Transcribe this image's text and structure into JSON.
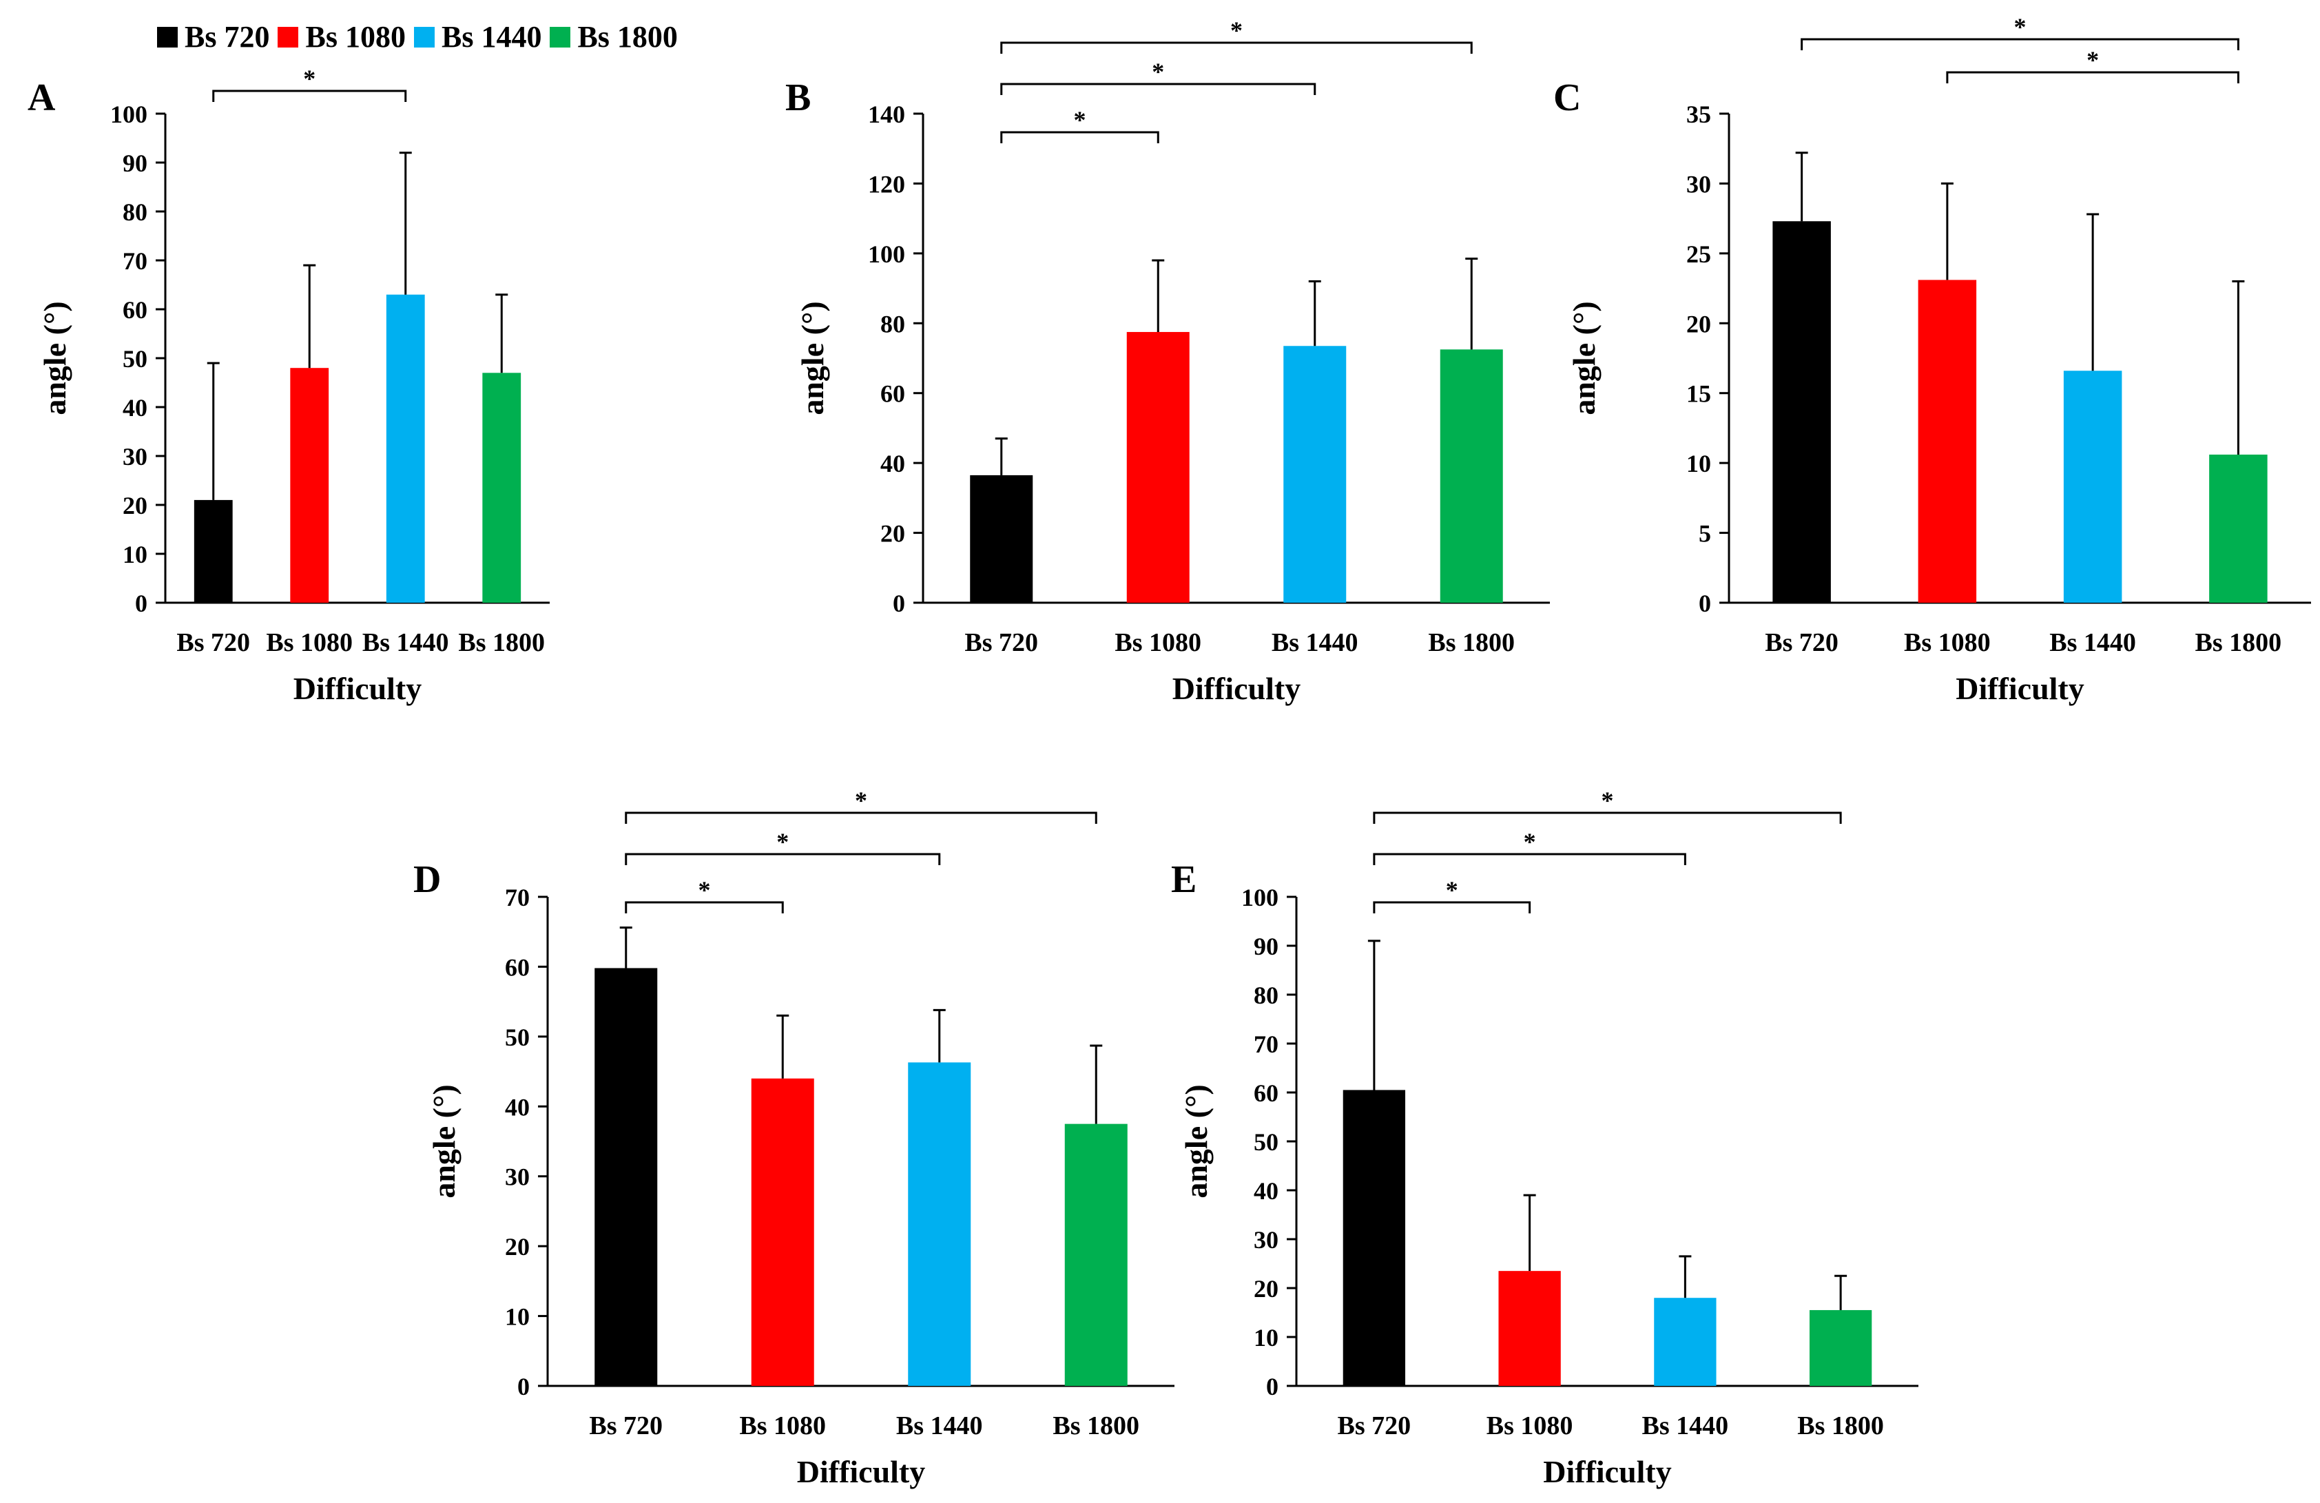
{
  "legend": [
    {
      "label": "Bs 720",
      "color": "#000000"
    },
    {
      "label": "Bs 1080",
      "color": "#ff0000"
    },
    {
      "label": "Bs 1440",
      "color": "#00b0f0"
    },
    {
      "label": "Bs 1800",
      "color": "#00b050"
    }
  ],
  "chart_data": [
    {
      "panel": "A",
      "type": "bar",
      "categories": [
        "Bs 720",
        "Bs 1080",
        "Bs 1440",
        "Bs 1800"
      ],
      "values": [
        21,
        48,
        63,
        47
      ],
      "errors": [
        28,
        21,
        29,
        16
      ],
      "ylim": [
        0,
        100
      ],
      "yticks": [
        0,
        10,
        20,
        30,
        40,
        50,
        60,
        70,
        80,
        90,
        100
      ],
      "xlabel": "Difficulty",
      "ylabel": "angle (°)",
      "significance": [
        {
          "from": 0,
          "to": 2,
          "label": "*"
        }
      ]
    },
    {
      "panel": "B",
      "type": "bar",
      "categories": [
        "Bs 720",
        "Bs 1080",
        "Bs 1440",
        "Bs 1800"
      ],
      "values": [
        36.5,
        77.5,
        73.5,
        72.5
      ],
      "errors": [
        10.5,
        20.5,
        18.5,
        26
      ],
      "ylim": [
        0,
        140
      ],
      "yticks": [
        0,
        20,
        40,
        60,
        80,
        100,
        120,
        140
      ],
      "xlabel": "Difficulty",
      "ylabel": "angle (°)",
      "significance": [
        {
          "from": 0,
          "to": 1,
          "label": "*"
        },
        {
          "from": 0,
          "to": 2,
          "label": "*"
        },
        {
          "from": 0,
          "to": 3,
          "label": "*"
        }
      ]
    },
    {
      "panel": "C",
      "type": "bar",
      "categories": [
        "Bs 720",
        "Bs 1080",
        "Bs 1440",
        "Bs 1800"
      ],
      "values": [
        27.3,
        23.1,
        16.6,
        10.6
      ],
      "errors": [
        4.9,
        6.9,
        11.2,
        12.4
      ],
      "ylim": [
        0,
        35
      ],
      "yticks": [
        0,
        5,
        10,
        15,
        20,
        25,
        30,
        35
      ],
      "xlabel": "Difficulty",
      "ylabel": "angle (°)",
      "significance": [
        {
          "from": 1,
          "to": 3,
          "label": "*"
        },
        {
          "from": 0,
          "to": 3,
          "label": "*"
        }
      ]
    },
    {
      "panel": "D",
      "type": "bar",
      "categories": [
        "Bs 720",
        "Bs 1080",
        "Bs 1440",
        "Bs 1800"
      ],
      "values": [
        59.8,
        44,
        46.3,
        37.5
      ],
      "errors": [
        5.8,
        9,
        7.5,
        11.2
      ],
      "ylim": [
        0,
        70
      ],
      "yticks": [
        0,
        10,
        20,
        30,
        40,
        50,
        60,
        70
      ],
      "xlabel": "Difficulty",
      "ylabel": "angle (°)",
      "significance": [
        {
          "from": 0,
          "to": 1,
          "label": "*"
        },
        {
          "from": 0,
          "to": 2,
          "label": "*"
        },
        {
          "from": 0,
          "to": 3,
          "label": "*"
        }
      ]
    },
    {
      "panel": "E",
      "type": "bar",
      "categories": [
        "Bs 720",
        "Bs 1080",
        "Bs 1440",
        "Bs 1800"
      ],
      "values": [
        60.5,
        23.5,
        18,
        15.5
      ],
      "errors": [
        30.5,
        15.5,
        8.5,
        7
      ],
      "ylim": [
        0,
        100
      ],
      "yticks": [
        0,
        10,
        20,
        30,
        40,
        50,
        60,
        70,
        80,
        90,
        100
      ],
      "xlabel": "Difficulty",
      "ylabel": "angle (°)",
      "significance": [
        {
          "from": 0,
          "to": 1,
          "label": "*"
        },
        {
          "from": 0,
          "to": 2,
          "label": "*"
        },
        {
          "from": 0,
          "to": 3,
          "label": "*"
        }
      ]
    }
  ]
}
